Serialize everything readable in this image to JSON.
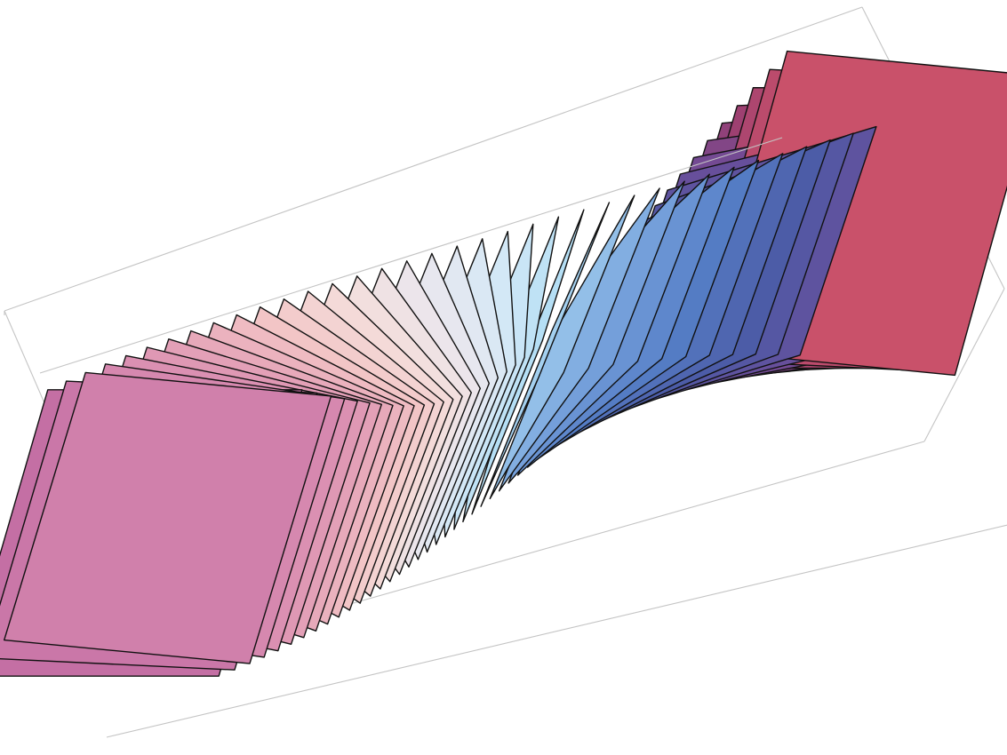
{
  "scene": {
    "kind": "3d-parametric-graphic",
    "description_visible": false,
    "bounding_box": true,
    "panel_count": 44,
    "edge_color": "#111111",
    "box_color": "#c4c4c4",
    "background": "#ffffff",
    "palette": [
      "#c46fa4",
      "#d88bb0",
      "#e6a5b8",
      "#f2c4c6",
      "#f4dcd9",
      "#eae7ee",
      "#d5e9f6",
      "#b3def5",
      "#7aa6de",
      "#557ec6",
      "#4c5ba6",
      "#6b4d9a",
      "#9a3e72",
      "#c9516a"
    ]
  }
}
